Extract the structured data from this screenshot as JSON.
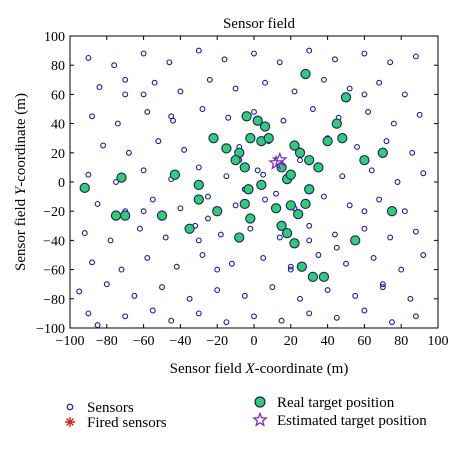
{
  "chart_data": {
    "type": "scatter",
    "title": "Sensor field",
    "xlabel_parts": [
      "Sensor field ",
      "X",
      "-coordinate (m)"
    ],
    "ylabel_parts": [
      "Sensor field ",
      "Y",
      "-coordinate (m)"
    ],
    "xlim": [
      -100,
      100
    ],
    "ylim": [
      -100,
      100
    ],
    "xticks": [
      -100,
      -80,
      -60,
      -40,
      -20,
      0,
      20,
      40,
      60,
      80,
      100
    ],
    "yticks": [
      -100,
      -80,
      -60,
      -40,
      -20,
      0,
      20,
      40,
      60,
      80,
      100
    ],
    "grid": false,
    "legend_position": "bottom",
    "colors": {
      "sensors": "#1a1aa6",
      "fired": "#e02020",
      "real_fill": "#2fd06a",
      "real_edge": "#1a1a80",
      "estimated": "#7b2fbf"
    },
    "series": [
      {
        "name": "Sensors",
        "marker": "open-circle",
        "points": [
          [
            -90,
            -90
          ],
          [
            -85,
            -98
          ],
          [
            -70,
            -92
          ],
          [
            -55,
            -88
          ],
          [
            -45,
            -95
          ],
          [
            -30,
            -90
          ],
          [
            -15,
            -96
          ],
          [
            0,
            -92
          ],
          [
            15,
            -95
          ],
          [
            30,
            -90
          ],
          [
            45,
            -93
          ],
          [
            60,
            -88
          ],
          [
            75,
            -96
          ],
          [
            88,
            -92
          ],
          [
            -95,
            -75
          ],
          [
            -80,
            -70
          ],
          [
            -65,
            -78
          ],
          [
            -50,
            -72
          ],
          [
            -35,
            -80
          ],
          [
            -20,
            -74
          ],
          [
            -5,
            -78
          ],
          [
            10,
            -72
          ],
          [
            25,
            -80
          ],
          [
            40,
            -74
          ],
          [
            55,
            -78
          ],
          [
            70,
            -72
          ],
          [
            85,
            -80
          ],
          [
            -88,
            -55
          ],
          [
            -72,
            -60
          ],
          [
            -58,
            -52
          ],
          [
            -42,
            -58
          ],
          [
            -28,
            -50
          ],
          [
            -12,
            -56
          ],
          [
            5,
            -52
          ],
          [
            20,
            -58
          ],
          [
            35,
            -50
          ],
          [
            50,
            -56
          ],
          [
            65,
            -52
          ],
          [
            80,
            -60
          ],
          [
            92,
            -50
          ],
          [
            -92,
            -35
          ],
          [
            -78,
            -40
          ],
          [
            -62,
            -32
          ],
          [
            -48,
            -38
          ],
          [
            -32,
            -30
          ],
          [
            -18,
            -36
          ],
          [
            -2,
            -32
          ],
          [
            14,
            -38
          ],
          [
            30,
            -30
          ],
          [
            44,
            -36
          ],
          [
            60,
            -32
          ],
          [
            74,
            -38
          ],
          [
            88,
            -34
          ],
          [
            -85,
            -15
          ],
          [
            -70,
            -20
          ],
          [
            -55,
            -12
          ],
          [
            -40,
            -18
          ],
          [
            -25,
            -10
          ],
          [
            -10,
            -16
          ],
          [
            6,
            -12
          ],
          [
            22,
            -18
          ],
          [
            38,
            -10
          ],
          [
            52,
            -16
          ],
          [
            68,
            -12
          ],
          [
            82,
            -20
          ],
          [
            -90,
            5
          ],
          [
            -75,
            0
          ],
          [
            -60,
            8
          ],
          [
            -45,
            2
          ],
          [
            -30,
            10
          ],
          [
            -15,
            4
          ],
          [
            2,
            8
          ],
          [
            18,
            2
          ],
          [
            34,
            10
          ],
          [
            48,
            4
          ],
          [
            64,
            8
          ],
          [
            78,
            0
          ],
          [
            92,
            6
          ],
          [
            -82,
            25
          ],
          [
            -68,
            20
          ],
          [
            -52,
            28
          ],
          [
            -38,
            22
          ],
          [
            -22,
            30
          ],
          [
            -8,
            24
          ],
          [
            8,
            28
          ],
          [
            24,
            22
          ],
          [
            40,
            30
          ],
          [
            56,
            24
          ],
          [
            72,
            28
          ],
          [
            86,
            20
          ],
          [
            -88,
            45
          ],
          [
            -74,
            40
          ],
          [
            -58,
            48
          ],
          [
            -44,
            42
          ],
          [
            -28,
            50
          ],
          [
            -14,
            44
          ],
          [
            0,
            48
          ],
          [
            16,
            42
          ],
          [
            32,
            50
          ],
          [
            46,
            44
          ],
          [
            62,
            48
          ],
          [
            76,
            40
          ],
          [
            90,
            46
          ],
          [
            -84,
            65
          ],
          [
            -70,
            60
          ],
          [
            -54,
            68
          ],
          [
            -40,
            62
          ],
          [
            -24,
            70
          ],
          [
            -10,
            64
          ],
          [
            6,
            68
          ],
          [
            22,
            62
          ],
          [
            38,
            70
          ],
          [
            52,
            64
          ],
          [
            68,
            68
          ],
          [
            82,
            60
          ],
          [
            -90,
            85
          ],
          [
            -76,
            80
          ],
          [
            -60,
            88
          ],
          [
            -46,
            82
          ],
          [
            -30,
            90
          ],
          [
            -16,
            84
          ],
          [
            0,
            88
          ],
          [
            14,
            82
          ],
          [
            30,
            90
          ],
          [
            44,
            84
          ],
          [
            60,
            88
          ],
          [
            74,
            82
          ],
          [
            88,
            86
          ],
          [
            -60,
            -20
          ],
          [
            -20,
            -60
          ],
          [
            20,
            -60
          ],
          [
            60,
            -20
          ],
          [
            -60,
            60
          ],
          [
            60,
            60
          ],
          [
            -30,
            -40
          ],
          [
            30,
            -40
          ],
          [
            -5,
            -5
          ],
          [
            5,
            5
          ],
          [
            -8,
            15
          ],
          [
            12,
            -8
          ],
          [
            25,
            15
          ],
          [
            -25,
            -25
          ],
          [
            45,
            -45
          ],
          [
            -45,
            45
          ],
          [
            70,
            -70
          ],
          [
            -70,
            70
          ]
        ]
      },
      {
        "name": "Fired sensors",
        "marker": "red-star",
        "points": []
      },
      {
        "name": "Real target position",
        "marker": "filled-circle",
        "points": [
          [
            -92,
            -4
          ],
          [
            -72,
            3
          ],
          [
            -75,
            -23
          ],
          [
            -70,
            -23
          ],
          [
            -50,
            -23
          ],
          [
            -35,
            -32
          ],
          [
            -43,
            5
          ],
          [
            -30,
            -12
          ],
          [
            -20,
            -20
          ],
          [
            -30,
            -2
          ],
          [
            -22,
            30
          ],
          [
            -15,
            23
          ],
          [
            -8,
            20
          ],
          [
            -5,
            10
          ],
          [
            -4,
            45
          ],
          [
            2,
            42
          ],
          [
            6,
            38
          ],
          [
            -2,
            30
          ],
          [
            4,
            28
          ],
          [
            8,
            30
          ],
          [
            15,
            10
          ],
          [
            18,
            2
          ],
          [
            20,
            5
          ],
          [
            22,
            25
          ],
          [
            25,
            20
          ],
          [
            30,
            15
          ],
          [
            35,
            10
          ],
          [
            40,
            28
          ],
          [
            45,
            40
          ],
          [
            48,
            30
          ],
          [
            50,
            58
          ],
          [
            60,
            15
          ],
          [
            70,
            20
          ],
          [
            75,
            -20
          ],
          [
            55,
            -40
          ],
          [
            28,
            74
          ],
          [
            20,
            -16
          ],
          [
            24,
            -22
          ],
          [
            18,
            -35
          ],
          [
            28,
            -15
          ],
          [
            30,
            -5
          ],
          [
            -10,
            15
          ],
          [
            -5,
            -15
          ],
          [
            -2,
            -25
          ],
          [
            4,
            -2
          ],
          [
            -8,
            -38
          ],
          [
            12,
            -18
          ],
          [
            15,
            -30
          ],
          [
            22,
            -42
          ],
          [
            -3,
            -5
          ],
          [
            26,
            -58
          ],
          [
            32,
            -65
          ],
          [
            38,
            -65
          ]
        ]
      },
      {
        "name": "Estimated target position",
        "marker": "star",
        "points": [
          [
            14,
            15
          ],
          [
            12,
            13
          ]
        ]
      }
    ]
  }
}
